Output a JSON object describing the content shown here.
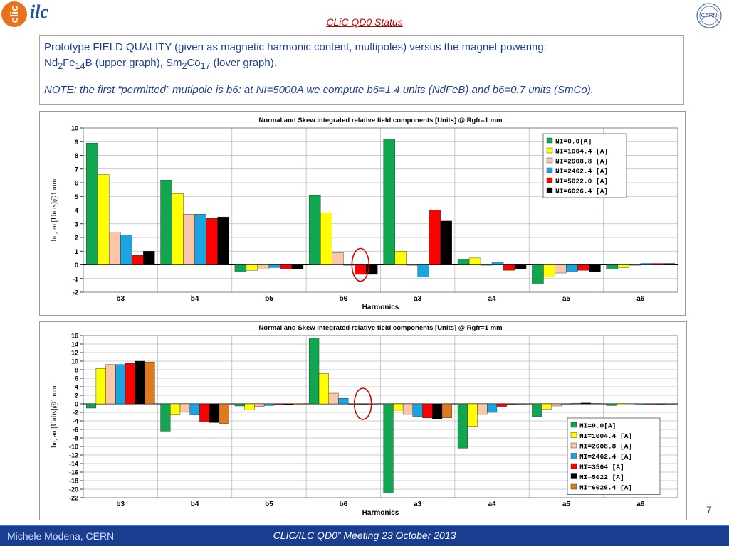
{
  "logos": {
    "clic": "clic",
    "ilc": "ilc",
    "cern": "CERN"
  },
  "slide_title": "CLiC QD0 Status",
  "description": {
    "line1_a": "Prototype FIELD QUALITY (given as magnetic harmonic content, multipoles) versus the magnet powering:",
    "nd": "Nd",
    "nd_sub": "2",
    "fe": "Fe",
    "fe_sub": "14",
    "b_upper": "B (upper graph), ",
    "sm": "Sm",
    "sm_sub": "2",
    "co": "Co",
    "co_sub": "17",
    "lover": " (lover graph).",
    "note": "NOTE: the first “permitted” mutipole is b6: at NI=5000A we compute b6=1.4 units (NdFeB) and b6=0.7 units (SmCo)."
  },
  "chart_data": [
    {
      "type": "bar",
      "title": "Normal and Skew integrated relative field components [Units] @ Rgfr=1 mm",
      "xlabel": "Harmonics",
      "ylabel": "bn, an [Units]@1 mm",
      "ylim": [
        -2,
        10
      ],
      "yticks": [
        -2,
        -1,
        0,
        1,
        2,
        3,
        4,
        5,
        6,
        7,
        8,
        9,
        10
      ],
      "grid": true,
      "legend_position": "top-right",
      "categories": [
        "b3",
        "b4",
        "b5",
        "b6",
        "a3",
        "a4",
        "a5",
        "a6"
      ],
      "series": [
        {
          "name": "NI=0.0[A]",
          "color": "#13a651",
          "values": [
            8.9,
            6.2,
            -0.5,
            5.1,
            9.2,
            0.4,
            -1.4,
            -0.3
          ]
        },
        {
          "name": "NI=1004.4 [A]",
          "color": "#ffff00",
          "values": [
            6.6,
            5.2,
            -0.4,
            3.8,
            1.0,
            0.5,
            -0.9,
            -0.2
          ]
        },
        {
          "name": "NI=2008.8 [A]",
          "color": "#fac8a8",
          "values": [
            2.4,
            3.7,
            -0.3,
            0.9,
            0.0,
            0.0,
            -0.6,
            0.0
          ]
        },
        {
          "name": "NI=2462.4 [A]",
          "color": "#1aa4e0",
          "values": [
            2.2,
            3.7,
            -0.2,
            0.0,
            -0.9,
            0.2,
            -0.5,
            0.1
          ]
        },
        {
          "name": "NI=5022.0 [A]",
          "color": "#ff0000",
          "values": [
            0.7,
            3.4,
            -0.3,
            -0.7,
            4.0,
            -0.4,
            -0.4,
            0.1
          ]
        },
        {
          "name": "NI=6026.4 [A]",
          "color": "#000000",
          "values": [
            1.0,
            3.5,
            -0.3,
            -0.7,
            3.2,
            -0.3,
            -0.5,
            0.1
          ]
        }
      ],
      "highlight_category": "b6"
    },
    {
      "type": "bar",
      "title": "Normal and Skew integrated relative field components [Units] @ Rgfr=1 mm",
      "xlabel": "Harmonics",
      "ylabel": "bn, an [Units]@1 mm",
      "ylim": [
        -22,
        16
      ],
      "yticks": [
        -22,
        -20,
        -18,
        -16,
        -14,
        -12,
        -10,
        -8,
        -6,
        -4,
        -2,
        0,
        2,
        4,
        6,
        8,
        10,
        12,
        14,
        16
      ],
      "grid": true,
      "legend_position": "bottom-right",
      "categories": [
        "b3",
        "b4",
        "b5",
        "b6",
        "a3",
        "a4",
        "a5",
        "a6"
      ],
      "series": [
        {
          "name": "NI=0.0[A]",
          "color": "#13a651",
          "values": [
            -1.0,
            -6.4,
            -0.5,
            15.4,
            -20.9,
            -10.4,
            -3.0,
            -0.4
          ]
        },
        {
          "name": "NI=1004.4 [A]",
          "color": "#ffff00",
          "values": [
            8.3,
            -2.6,
            -1.4,
            7.1,
            -1.5,
            -5.3,
            -1.2,
            -0.3
          ]
        },
        {
          "name": "NI=2008.8 [A]",
          "color": "#fac8a8",
          "values": [
            9.2,
            -1.9,
            -0.6,
            2.5,
            -2.5,
            -2.5,
            -0.5,
            -0.2
          ]
        },
        {
          "name": "NI=2462.4 [A]",
          "color": "#1aa4e0",
          "values": [
            9.2,
            -2.6,
            -0.4,
            1.3,
            -3.0,
            -2.0,
            -0.2,
            -0.2
          ]
        },
        {
          "name": "NI=3564 [A]",
          "color": "#ff0000",
          "values": [
            9.5,
            -4.2,
            -0.2,
            0.0,
            -3.3,
            -0.6,
            0.1,
            -0.1
          ]
        },
        {
          "name": "NI=5022 [A]",
          "color": "#000000",
          "values": [
            10.0,
            -4.4,
            -0.3,
            0.0,
            -3.6,
            -0.1,
            0.2,
            -0.1
          ]
        },
        {
          "name": "NI=6026.4 [A]",
          "color": "#e07a1e",
          "values": [
            9.8,
            -4.6,
            -0.3,
            0.0,
            -3.3,
            -0.1,
            0.1,
            -0.1
          ]
        }
      ],
      "highlight_category": "b6"
    }
  ],
  "page_number": "7",
  "footer": {
    "author": "Michele Modena, CERN",
    "meeting": "CLIC/ILC QD0” Meeting 23 October 2013"
  }
}
